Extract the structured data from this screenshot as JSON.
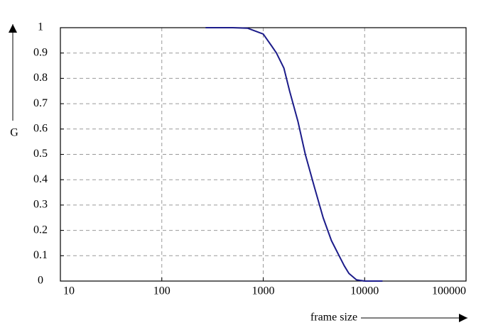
{
  "chart_data": {
    "type": "line",
    "xlabel": "frame size",
    "ylabel": "G",
    "x": [
      270,
      500,
      700,
      1000,
      1200,
      1350,
      1600,
      1820,
      2200,
      2600,
      3200,
      3900,
      4700,
      5600,
      6300,
      7000,
      8300,
      10000,
      15000
    ],
    "series": [
      {
        "name": "G",
        "color": "#1c1c8a",
        "values": [
          1,
          1,
          0.998,
          0.975,
          0.93,
          0.9,
          0.84,
          0.75,
          0.63,
          0.5,
          0.37,
          0.25,
          0.16,
          0.1,
          0.06,
          0.03,
          0.005,
          0,
          0
        ]
      }
    ],
    "xscale": "log",
    "xlim": [
      10,
      100000
    ],
    "xticks": [
      10,
      100,
      1000,
      10000,
      100000
    ],
    "ylim": [
      0,
      1
    ],
    "yticks": [
      0,
      0.1,
      0.2,
      0.3,
      0.4,
      0.5,
      0.6,
      0.7,
      0.8,
      0.9,
      1
    ],
    "grid": true
  }
}
